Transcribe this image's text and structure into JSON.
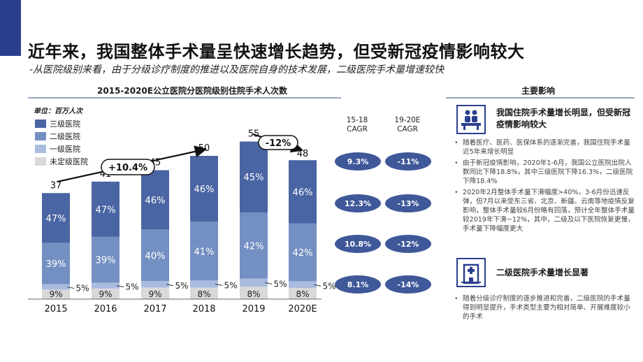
{
  "page": {
    "title": "近年来，我国整体手术量呈快速增长趋势，但受新冠疫情影响较大",
    "subtitle": "-从医院级别来看，由于分级诊疗制度的推进以及医院自身的技术发展，二级医院手术量增速较快"
  },
  "colors": {
    "tier3": "#4a65a3",
    "tier2": "#7490c3",
    "tier1": "#a9bbdf",
    "unrated": "#d9d9d9",
    "accent": "#2b3f8f",
    "oval": "#3f5899"
  },
  "chart_data": {
    "type": "bar",
    "title": "2015-2020E公立医院分医院级别住院手术人次数",
    "unit": "单位：百万人次",
    "categories": [
      "2015",
      "2016",
      "2017",
      "2018",
      "2019",
      "2020E"
    ],
    "totals": [
      37,
      41,
      45,
      50,
      55,
      48
    ],
    "ylim": [
      0,
      60
    ],
    "series": [
      {
        "name": "三级医院",
        "values": [
          47,
          47,
          46,
          46,
          45,
          46
        ],
        "labels": [
          "47%",
          "47%",
          "46%",
          "46%",
          "45%",
          "46%"
        ]
      },
      {
        "name": "二级医院",
        "values": [
          39,
          39,
          40,
          41,
          42,
          42
        ],
        "labels": [
          "39%",
          "39%",
          "40%",
          "41%",
          "42%",
          "42%"
        ]
      },
      {
        "name": "一级医院",
        "values": [
          5,
          5,
          5,
          5,
          5,
          5
        ],
        "labels": [
          "5%",
          "5%",
          "5%",
          "5%",
          "5%",
          "5%"
        ]
      },
      {
        "name": "未定级医院",
        "values": [
          9,
          9,
          9,
          8,
          8,
          8
        ],
        "labels": [
          "9%",
          "9%",
          "9%",
          "8%",
          "8%",
          "8%"
        ]
      }
    ],
    "annotations": [
      {
        "text": "+10.4%",
        "span": [
          "2015",
          "2018"
        ]
      },
      {
        "text": "-12%",
        "span": [
          "2019",
          "2020E"
        ]
      }
    ],
    "cagr": {
      "headers": [
        "15-18\nCAGR",
        "19-20E\nCAGR"
      ],
      "rows": [
        {
          "series": "三级医院",
          "c1518": "9.3%",
          "c1920": "-11%"
        },
        {
          "series": "二级医院",
          "c1518": "12.3%",
          "c1920": "-13%"
        },
        {
          "series": "一级医院",
          "c1518": "10.8%",
          "c1920": "-12%"
        },
        {
          "series": "未定级医院",
          "c1518": "8.1%",
          "c1920": "-14%"
        }
      ]
    }
  },
  "panel": {
    "title": "主要影响",
    "sections": [
      {
        "heading": "我国住院手术量增长明显，但受新冠疫情影响较大",
        "icon": "surgery-icon",
        "bullets": [
          "随着医疗、医药、医保体系的逐渐完善，我国住院手术量近5年来增长明显",
          "由于新冠疫情影响，2020年1-6月，我国公立医院出院人数同比下降18.8%，其中三级医院下降16.3%，二级医院下降18.4%",
          "2020年2月整体手术量下滑幅度>40%，3-6月份迅速反弹，但7月以来受东三省、北京、新疆、云南等地疫情反复影响，整体手术量较6月份略有回落，预计全年整体手术量较2019年下滑~12%，其中，二级及以下医院恢复更慢，手术量下降幅度更大"
        ]
      },
      {
        "heading": "二级医院手术量增长显著",
        "icon": "hospital-icon",
        "bullets": [
          "随着分级诊疗制度的逐步推进和完善，二级医院的手术量得到明显提升，手术类型主要为相对简单、开展难度较小的手术"
        ]
      }
    ]
  }
}
